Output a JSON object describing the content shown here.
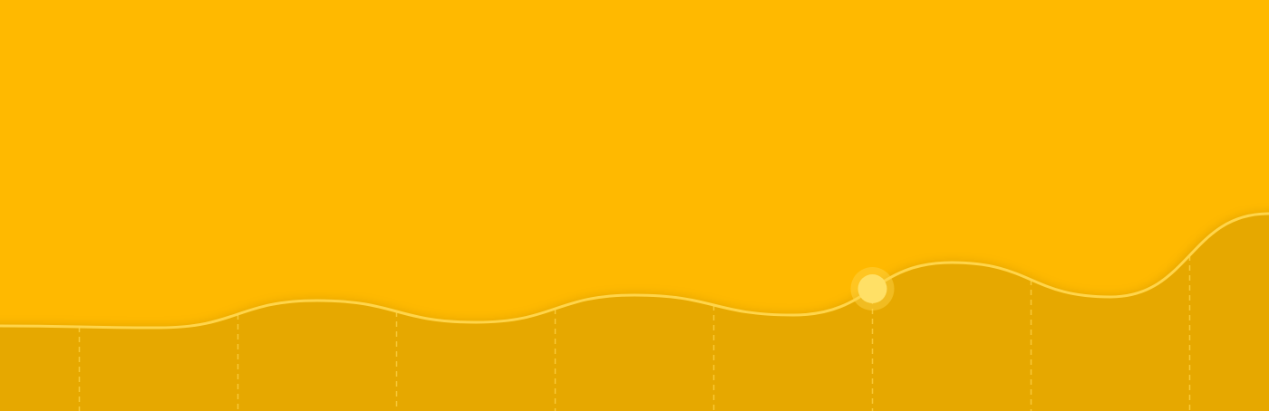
{
  "chart_data": {
    "type": "area",
    "x": [
      0,
      1,
      2,
      3,
      4,
      5,
      6,
      7,
      8
    ],
    "series": [
      {
        "values": [
          94,
          92,
          122,
          98,
          128,
          106,
          164,
          126,
          218
        ]
      }
    ],
    "x_range": [
      0,
      8
    ],
    "ylim": [
      0,
      454
    ],
    "highlight_index": 6,
    "grid": false,
    "legend": "none",
    "colors": {
      "background": "#FFB900",
      "area": "#E6A800",
      "line": "#FFD54A",
      "marker": "#FFE066",
      "marker_halo": "#FFD54A",
      "dashes": "#FFD54A"
    }
  }
}
